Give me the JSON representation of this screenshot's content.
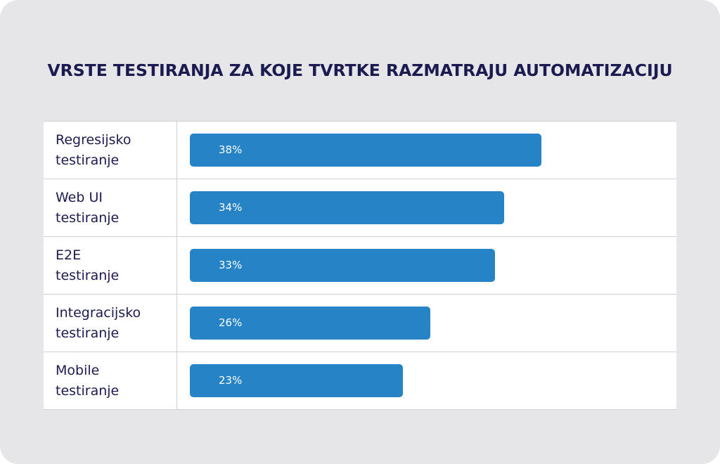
{
  "chart_data": {
    "type": "bar",
    "orientation": "horizontal",
    "title": "VRSTE TESTIRANJA ZA KOJE TVRTKE RAZMATRAJU AUTOMATIZACIJU",
    "categories": [
      [
        "Regresijsko",
        "testiranje"
      ],
      [
        "Web UI",
        "testiranje"
      ],
      [
        "E2E",
        "testiranje"
      ],
      [
        "Integracijsko",
        "testiranje"
      ],
      [
        "Mobile",
        "testiranje"
      ]
    ],
    "values": [
      38,
      34,
      33,
      26,
      23
    ],
    "value_labels": [
      "38%",
      "34%",
      "33%",
      "26%",
      "23%"
    ],
    "unit": "%",
    "xlim": [
      0,
      50
    ],
    "grid": false,
    "legend": "none"
  },
  "colors": {
    "bar": "#2683c6",
    "title": "#1b1b52",
    "background": "#e6e6e8",
    "table": "#ffffff"
  }
}
